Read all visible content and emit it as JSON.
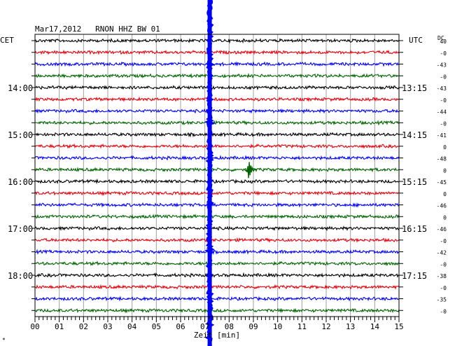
{
  "chart_data": {
    "type": "line",
    "title": "Mar17,2012   RNON HHZ BW 01",
    "left_axis_label": "CET",
    "right_axis_label": "UTC",
    "corner_label": "DC",
    "xlabel": "Zeit [min]",
    "x_ticks": [
      "00",
      "01",
      "02",
      "03",
      "04",
      "05",
      "06",
      "07",
      "08",
      "09",
      "10",
      "11",
      "12",
      "13",
      "14",
      "15"
    ],
    "xlim": [
      0,
      15
    ],
    "trace_count": 24,
    "trace_colors": [
      "#000000",
      "#e8000b",
      "#0000ff",
      "#006400"
    ],
    "left_hour_labels": [
      {
        "trace": 4,
        "text": "14:00"
      },
      {
        "trace": 8,
        "text": "15:00"
      },
      {
        "trace": 12,
        "text": "16:00"
      },
      {
        "trace": 16,
        "text": "17:00"
      },
      {
        "trace": 20,
        "text": "18:00"
      }
    ],
    "right_hour_labels": [
      {
        "trace": 4,
        "text": "13:15"
      },
      {
        "trace": 8,
        "text": "14:15"
      },
      {
        "trace": 12,
        "text": "15:15"
      },
      {
        "trace": 16,
        "text": "16:15"
      },
      {
        "trace": 20,
        "text": "17:15"
      }
    ],
    "dc_offsets": [
      "40",
      "-0",
      "-43",
      "-0",
      "-43",
      "-0",
      "-44",
      "-0",
      "-41",
      "0",
      "-48",
      "0",
      "-45",
      "0",
      "-46",
      "0",
      "-46",
      "-0",
      "-42",
      "-0",
      "-38",
      "-0",
      "-35",
      "-0"
    ],
    "events": [
      {
        "name": "large event",
        "time_min": 7.2,
        "color": "#0000ff"
      },
      {
        "name": "local event",
        "trace": 11,
        "time_min": 8.8,
        "color": "#006400"
      }
    ],
    "grid": true
  },
  "footnote": "*"
}
